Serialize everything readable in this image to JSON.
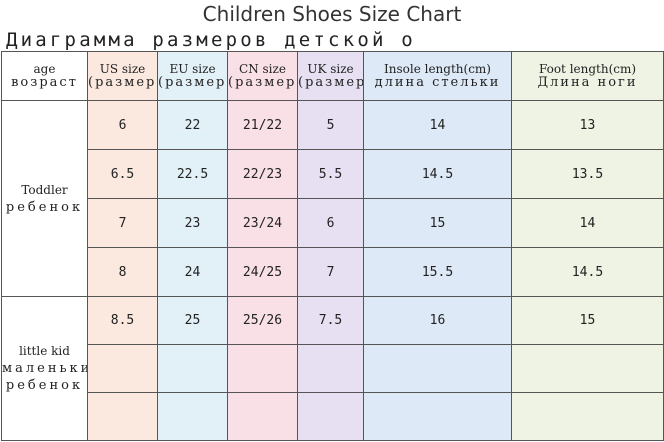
{
  "title": "Children Shoes Size Chart",
  "subtitle": "Диаграмма размеров детской о",
  "headers": {
    "age": {
      "en": "age",
      "ru": "возраст"
    },
    "us": {
      "en": "US size",
      "ru": "(размер)"
    },
    "eu": {
      "en": "EU size",
      "ru": "(размер)"
    },
    "cn": {
      "en": "CN size",
      "ru": "(размер)"
    },
    "uk": {
      "en": "UK size",
      "ru": "(размер)"
    },
    "insole": {
      "en": "Insole length(cm)",
      "ru": "длина стельки"
    },
    "foot": {
      "en": "Foot length(cm)",
      "ru": "Длина ноги"
    }
  },
  "groups": [
    {
      "en": "Toddler",
      "ru": "ребенок"
    },
    {
      "en": "little kid",
      "ru": "маленький ребенок"
    }
  ],
  "rows": [
    {
      "us": "6",
      "eu": "22",
      "cn": "21/22",
      "uk": "5",
      "insole": "14",
      "foot": "13"
    },
    {
      "us": "6.5",
      "eu": "22.5",
      "cn": "22/23",
      "uk": "5.5",
      "insole": "14.5",
      "foot": "13.5"
    },
    {
      "us": "7",
      "eu": "23",
      "cn": "23/24",
      "uk": "6",
      "insole": "15",
      "foot": "14"
    },
    {
      "us": "8",
      "eu": "24",
      "cn": "24/25",
      "uk": "7",
      "insole": "15.5",
      "foot": "14.5"
    },
    {
      "us": "8.5",
      "eu": "25",
      "cn": "25/26",
      "uk": "7.5",
      "insole": "16",
      "foot": "15"
    },
    {
      "us": "",
      "eu": "",
      "cn": "",
      "uk": "",
      "insole": "",
      "foot": ""
    },
    {
      "us": "",
      "eu": "",
      "cn": "",
      "uk": "",
      "insole": "",
      "foot": ""
    }
  ],
  "colors": {
    "us": "#fbe9df",
    "eu": "#e2f1f8",
    "cn": "#f8e0e6",
    "uk": "#e6e0f2",
    "insole": "#dde9f6",
    "foot": "#eef3e4"
  }
}
